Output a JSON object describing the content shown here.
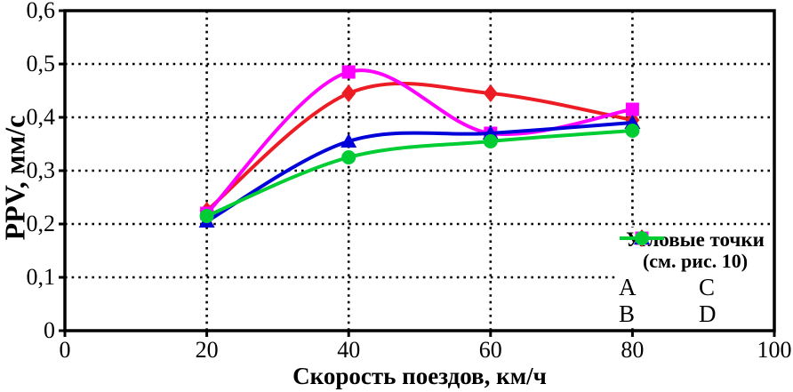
{
  "figure": {
    "background": "#ffffff",
    "frame_color": "#000000",
    "grid_color": "#000000"
  },
  "chart_data": {
    "type": "line",
    "title": "",
    "xlabel": "Скорость поездов, км/ч",
    "ylabel": "PPV, мм/с",
    "xlim": [
      0,
      100
    ],
    "ylim": [
      0,
      0.6
    ],
    "grid": "dotted",
    "x": [
      20,
      40,
      60,
      80
    ],
    "xticks": [
      0,
      20,
      40,
      60,
      80,
      100
    ],
    "xtick_labels": [
      "0",
      "20",
      "40",
      "60",
      "80",
      "100"
    ],
    "yticks": [
      0,
      0.1,
      0.2,
      0.3,
      0.4,
      0.5,
      0.6
    ],
    "ytick_labels": [
      "0",
      "0,1",
      "0,2",
      "0,3",
      "0,4",
      "0,5",
      "0,6"
    ],
    "series": [
      {
        "name": "A",
        "marker": "diamond",
        "color": "#ed1c24",
        "values": [
          0.225,
          0.445,
          0.445,
          0.395
        ]
      },
      {
        "name": "B",
        "marker": "square",
        "color": "#ff00ff",
        "values": [
          0.22,
          0.485,
          0.37,
          0.415
        ]
      },
      {
        "name": "C",
        "marker": "triangle",
        "color": "#0000d9",
        "values": [
          0.205,
          0.355,
          0.37,
          0.39
        ]
      },
      {
        "name": "D",
        "marker": "circle",
        "color": "#00cc33",
        "values": [
          0.215,
          0.325,
          0.355,
          0.375
        ]
      }
    ],
    "legend": {
      "title_line1": "Угловые точки",
      "title_line2": "(см. рис. 10)",
      "position": "lower right",
      "columns_row1": [
        "A",
        "C"
      ],
      "columns_row2": [
        "B",
        "D"
      ]
    }
  }
}
